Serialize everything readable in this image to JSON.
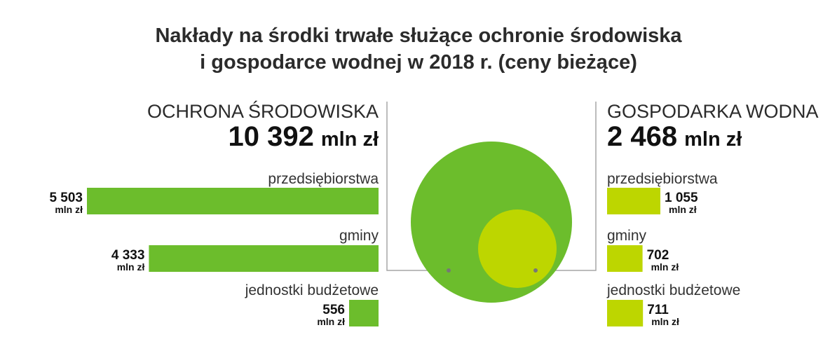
{
  "title_line1": "Nakłady na środki trwałe służące ochronie środowiska",
  "title_line2": "i gospodarce wodnej w 2018 r. (ceny bieżące)",
  "colors": {
    "environment": "#6cbd2c",
    "water": "#bdd600",
    "connector": "#a6a6a6"
  },
  "chart_data": {
    "type": "bar",
    "unit": "mln zł",
    "sections": [
      {
        "name": "OCHRONA ŚRODOWISKA",
        "total_value": "10 392",
        "total_unit": "mln zł",
        "total": 10392,
        "categories": [
          "przedsiębiorstwa",
          "gminy",
          "jednostki budżetowe"
        ],
        "values": [
          5503,
          4333,
          556
        ],
        "value_labels": [
          "5 503",
          "4 333",
          "556"
        ]
      },
      {
        "name": "GOSPODARKA WODNA",
        "total_value": "2 468",
        "total_unit": "mln zł",
        "total": 2468,
        "categories": [
          "przedsiębiorstwa",
          "gminy",
          "jednostki budżetowe"
        ],
        "values": [
          1055,
          702,
          711
        ],
        "value_labels": [
          "1 055",
          "702",
          "711"
        ]
      }
    ]
  }
}
